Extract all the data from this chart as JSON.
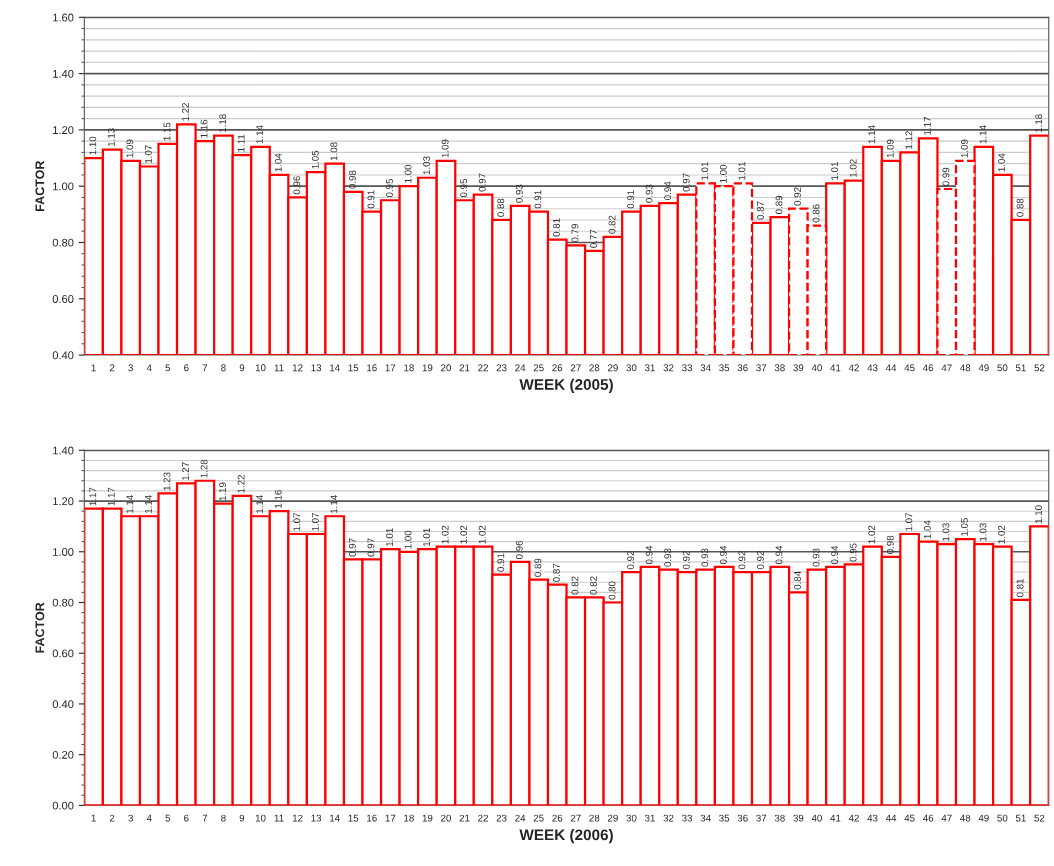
{
  "chart_data": [
    {
      "type": "bar",
      "xlabel": "WEEK (2005)",
      "ylabel": "FACTOR",
      "categories": [
        "1",
        "2",
        "3",
        "4",
        "5",
        "6",
        "7",
        "8",
        "9",
        "10",
        "11",
        "12",
        "13",
        "14",
        "15",
        "16",
        "17",
        "18",
        "19",
        "20",
        "21",
        "22",
        "23",
        "24",
        "25",
        "26",
        "27",
        "28",
        "29",
        "30",
        "31",
        "32",
        "33",
        "34",
        "35",
        "36",
        "37",
        "38",
        "39",
        "40",
        "41",
        "42",
        "43",
        "44",
        "45",
        "46",
        "47",
        "48",
        "49",
        "50",
        "51",
        "52"
      ],
      "series": [
        {
          "color": "#ff0000",
          "line_style": "solid",
          "values": [
            1.1,
            1.13,
            1.09,
            1.07,
            1.15,
            1.22,
            1.16,
            1.18,
            1.11,
            1.14,
            1.04,
            0.96,
            1.05,
            1.08,
            0.98,
            0.91,
            0.95,
            1.0,
            1.03,
            1.09,
            0.95,
            0.97,
            0.88,
            0.93,
            0.91,
            0.81,
            0.79,
            0.77,
            0.82,
            0.91,
            0.93,
            0.94,
            0.97,
            null,
            null,
            null,
            0.87,
            0.89,
            null,
            null,
            1.01,
            1.02,
            1.14,
            1.09,
            1.12,
            1.17,
            null,
            null,
            1.14,
            1.04,
            0.88,
            1.18
          ],
          "value_labels": [
            "1.10",
            "1.13",
            "1.09",
            "1.07",
            "1.15",
            "1.22",
            "1.16",
            "1.18",
            "1.11",
            "1.14",
            "1.04",
            "0.96",
            "1.05",
            "1.08",
            "0.98",
            "0.91",
            "0.95",
            "1.00",
            "1.03",
            "1.09",
            "0.95",
            "0.97",
            "0.88",
            "0.93",
            "0.91",
            "0.81",
            "0.79",
            "0.77",
            "0.82",
            "0.91",
            "0.93",
            "0.94",
            "0.97",
            null,
            null,
            null,
            "0.87",
            "0.89",
            null,
            null,
            "1.01",
            "1.02",
            "1.14",
            "1.09",
            "1.12",
            "1.17",
            null,
            null,
            "1.14",
            "1.04",
            "0.88",
            "1.18"
          ]
        },
        {
          "color": "#ff0000",
          "line_style": "dashed",
          "values": [
            null,
            null,
            null,
            null,
            null,
            null,
            null,
            null,
            null,
            null,
            null,
            null,
            null,
            null,
            null,
            null,
            null,
            null,
            null,
            null,
            null,
            null,
            null,
            null,
            null,
            null,
            null,
            null,
            null,
            null,
            null,
            null,
            null,
            1.01,
            1.0,
            1.01,
            null,
            null,
            0.92,
            0.86,
            null,
            null,
            null,
            null,
            null,
            null,
            0.99,
            1.09,
            null,
            null,
            null,
            null
          ],
          "value_labels": [
            null,
            null,
            null,
            null,
            null,
            null,
            null,
            null,
            null,
            null,
            null,
            null,
            null,
            null,
            null,
            null,
            null,
            null,
            null,
            null,
            null,
            null,
            null,
            null,
            null,
            null,
            null,
            null,
            null,
            null,
            null,
            null,
            null,
            "1.01",
            "1.00",
            "1.01",
            null,
            null,
            "0.92",
            "0.86",
            null,
            null,
            null,
            null,
            null,
            null,
            "0.99",
            "1.09",
            null,
            null,
            null,
            null
          ]
        }
      ],
      "ylim": [
        0.4,
        1.6
      ],
      "yticks": [
        {
          "value": 0.4,
          "label": "0.40"
        },
        {
          "value": 0.6,
          "label": "0.60"
        },
        {
          "value": 0.8,
          "label": "0.80"
        },
        {
          "value": 1.0,
          "label": "1.00"
        },
        {
          "value": 1.2,
          "label": "1.20"
        },
        {
          "value": 1.4,
          "label": "1.40"
        },
        {
          "value": 1.6,
          "label": "1.60"
        }
      ],
      "grid": "y"
    },
    {
      "type": "bar",
      "xlabel": "WEEK (2006)",
      "ylabel": "FACTOR",
      "categories": [
        "1",
        "2",
        "3",
        "4",
        "5",
        "6",
        "7",
        "8",
        "9",
        "10",
        "11",
        "12",
        "13",
        "14",
        "15",
        "16",
        "17",
        "18",
        "19",
        "20",
        "21",
        "22",
        "23",
        "24",
        "25",
        "26",
        "27",
        "28",
        "29",
        "30",
        "31",
        "32",
        "33",
        "34",
        "35",
        "36",
        "37",
        "38",
        "39",
        "40",
        "41",
        "42",
        "43",
        "44",
        "45",
        "46",
        "47",
        "48",
        "49",
        "50",
        "51",
        "52"
      ],
      "series": [
        {
          "color": "#ff0000",
          "line_style": "solid",
          "values": [
            1.17,
            1.17,
            1.14,
            1.14,
            1.23,
            1.27,
            1.28,
            1.19,
            1.22,
            1.14,
            1.16,
            1.07,
            1.07,
            1.14,
            0.97,
            0.97,
            1.01,
            1.0,
            1.01,
            1.02,
            1.02,
            1.02,
            0.91,
            0.96,
            0.89,
            0.87,
            0.82,
            0.82,
            0.8,
            0.92,
            0.94,
            0.93,
            0.92,
            0.93,
            0.94,
            0.92,
            0.92,
            0.94,
            0.84,
            0.93,
            0.94,
            0.95,
            1.02,
            0.98,
            1.07,
            1.04,
            1.03,
            1.05,
            1.03,
            1.02,
            0.81,
            1.1
          ],
          "value_labels": [
            "1.17",
            "1.17",
            "1.14",
            "1.14",
            "1.23",
            "1.27",
            "1.28",
            "1.19",
            "1.22",
            "1.14",
            "1.16",
            "1.07",
            "1.07",
            "1.14",
            "0.97",
            "0.97",
            "1.01",
            "1.00",
            "1.01",
            "1.02",
            "1.02",
            "1.02",
            "0.91",
            "0.96",
            "0.89",
            "0.87",
            "0.82",
            "0.82",
            "0.80",
            "0.92",
            "0.94",
            "0.93",
            "0.92",
            "0.93",
            "0.94",
            "0.92",
            "0.92",
            "0.94",
            "0.84",
            "0.93",
            "0.94",
            "0.95",
            "1.02",
            "0.98",
            "1.07",
            "1.04",
            "1.03",
            "1.05",
            "1.03",
            "1.02",
            "0.81",
            "1.10"
          ]
        }
      ],
      "ylim": [
        0.0,
        1.4
      ],
      "yticks": [
        {
          "value": 0.0,
          "label": "0.00"
        },
        {
          "value": 0.2,
          "label": "0.20"
        },
        {
          "value": 0.4,
          "label": "0.40"
        },
        {
          "value": 0.6,
          "label": "0.60"
        },
        {
          "value": 0.8,
          "label": "0.80"
        },
        {
          "value": 1.0,
          "label": "1.00"
        },
        {
          "value": 1.2,
          "label": "1.20"
        },
        {
          "value": 1.4,
          "label": "1.40"
        }
      ],
      "grid": "y"
    }
  ]
}
